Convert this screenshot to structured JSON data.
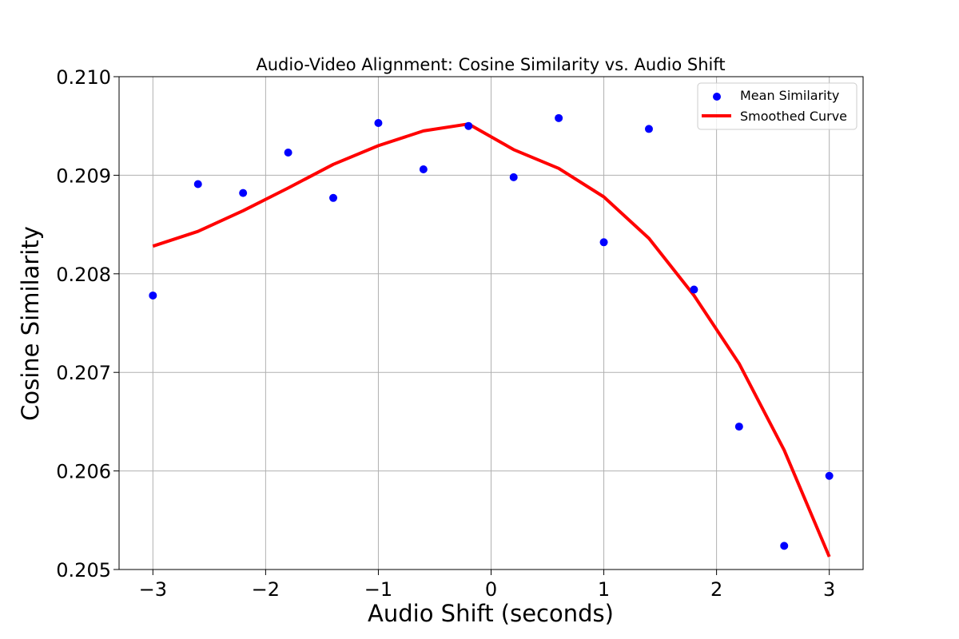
{
  "chart_data": {
    "type": "scatter",
    "title": "Audio-Video Alignment: Cosine Similarity vs. Audio Shift",
    "xlabel": "Audio Shift (seconds)",
    "ylabel": "Cosine Similarity",
    "xlim": [
      -3.3,
      3.3
    ],
    "ylim": [
      0.205,
      0.21
    ],
    "xticks": [
      -3,
      -2,
      -1,
      0,
      1,
      2,
      3
    ],
    "xtick_labels": [
      "−3",
      "−2",
      "−1",
      "0",
      "1",
      "2",
      "3"
    ],
    "yticks": [
      0.205,
      0.206,
      0.207,
      0.208,
      0.209,
      0.21
    ],
    "ytick_labels": [
      "0.205",
      "0.206",
      "0.207",
      "0.208",
      "0.209",
      "0.210"
    ],
    "grid": true,
    "legend_position": "top-right",
    "series": [
      {
        "name": "Mean Similarity",
        "kind": "scatter",
        "color": "#0000ff",
        "x": [
          -3.0,
          -2.6,
          -2.2,
          -1.8,
          -1.4,
          -1.0,
          -0.6,
          -0.2,
          0.2,
          0.6,
          1.0,
          1.4,
          1.8,
          2.2,
          2.6,
          3.0
        ],
        "y": [
          0.20778,
          0.20891,
          0.20882,
          0.20923,
          0.20877,
          0.20953,
          0.20906,
          0.2095,
          0.20898,
          0.20958,
          0.20832,
          0.20947,
          0.20784,
          0.20645,
          0.20524,
          0.20595
        ]
      },
      {
        "name": "Smoothed Curve",
        "kind": "line",
        "color": "#ff0000",
        "x": [
          -3.0,
          -2.6,
          -2.2,
          -1.8,
          -1.4,
          -1.0,
          -0.6,
          -0.2,
          0.2,
          0.6,
          1.0,
          1.4,
          1.8,
          2.2,
          2.6,
          3.0
        ],
        "y": [
          0.20828,
          0.20843,
          0.20864,
          0.20887,
          0.20911,
          0.2093,
          0.20945,
          0.20952,
          0.20926,
          0.20907,
          0.20878,
          0.20836,
          0.20778,
          0.20709,
          0.20621,
          0.20513
        ]
      }
    ]
  }
}
